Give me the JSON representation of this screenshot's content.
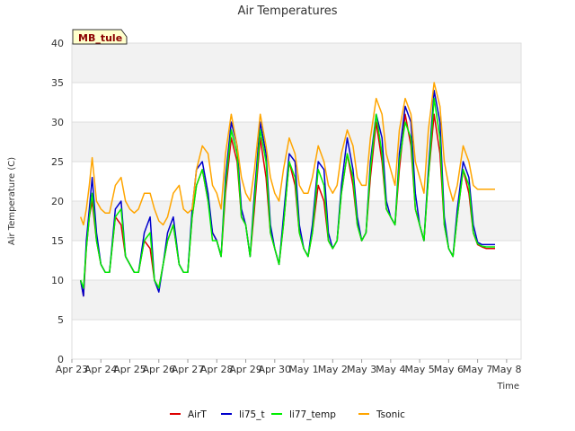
{
  "chart_data": {
    "type": "line",
    "title": "Air Temperatures",
    "xlabel": "Time",
    "ylabel": "Air Temperature (C)",
    "badge": "MB_tule",
    "ylim": [
      0,
      40
    ],
    "yticks": [
      0,
      5,
      10,
      15,
      20,
      25,
      30,
      35,
      40
    ],
    "xlim": [
      0,
      15.5
    ],
    "xticks": [
      {
        "x": 0,
        "label": "Apr 23"
      },
      {
        "x": 1,
        "label": "Apr 24"
      },
      {
        "x": 2,
        "label": "Apr 25"
      },
      {
        "x": 3,
        "label": "Apr 26"
      },
      {
        "x": 4,
        "label": "Apr 27"
      },
      {
        "x": 5,
        "label": "Apr 28"
      },
      {
        "x": 6,
        "label": "Apr 29"
      },
      {
        "x": 7,
        "label": "Apr 30"
      },
      {
        "x": 8,
        "label": "May 1"
      },
      {
        "x": 9,
        "label": "May 2"
      },
      {
        "x": 10,
        "label": "May 3"
      },
      {
        "x": 11,
        "label": "May 4"
      },
      {
        "x": 12,
        "label": "May 5"
      },
      {
        "x": 13,
        "label": "May 6"
      },
      {
        "x": 14,
        "label": "May 7"
      },
      {
        "x": 15,
        "label": "May 8"
      }
    ],
    "grid": true,
    "legend_position": "bottom",
    "series": [
      {
        "name": "AirT",
        "color": "#dd0000",
        "x": [
          0.3,
          0.4,
          0.5,
          0.6,
          0.7,
          0.85,
          1.0,
          1.15,
          1.3,
          1.5,
          1.7,
          1.85,
          2.0,
          2.15,
          2.3,
          2.5,
          2.7,
          2.85,
          3.0,
          3.15,
          3.3,
          3.5,
          3.7,
          3.85,
          4.0,
          4.15,
          4.3,
          4.5,
          4.7,
          4.85,
          5.0,
          5.15,
          5.3,
          5.5,
          5.7,
          5.85,
          6.0,
          6.15,
          6.3,
          6.5,
          6.7,
          6.85,
          7.0,
          7.15,
          7.3,
          7.5,
          7.7,
          7.85,
          8.0,
          8.15,
          8.3,
          8.5,
          8.7,
          8.85,
          9.0,
          9.15,
          9.3,
          9.5,
          9.7,
          9.85,
          10.0,
          10.15,
          10.3,
          10.5,
          10.7,
          10.85,
          11.0,
          11.15,
          11.3,
          11.5,
          11.7,
          11.85,
          12.0,
          12.15,
          12.3,
          12.5,
          12.7,
          12.85,
          13.0,
          13.15,
          13.3,
          13.5,
          13.7,
          13.85,
          14.0,
          14.15,
          14.3,
          14.5,
          14.6
        ],
        "y": [
          10,
          8,
          14,
          18,
          20,
          15,
          12,
          11,
          11,
          18,
          17,
          13,
          12,
          11,
          11,
          15,
          14,
          10,
          9,
          12,
          15,
          17,
          12,
          11,
          11,
          18,
          22,
          24,
          20,
          16,
          15,
          13,
          21,
          28,
          25,
          18,
          17,
          13,
          19,
          28,
          23,
          16,
          14,
          12,
          17,
          25,
          22,
          16,
          14,
          13,
          16,
          22,
          20,
          15,
          14,
          15,
          21,
          26,
          22,
          17,
          15,
          16,
          23,
          30,
          25,
          19,
          18,
          17,
          24,
          31,
          27,
          19,
          17,
          15,
          23,
          31,
          26,
          17,
          14,
          13,
          18,
          24,
          21,
          16,
          14.5,
          14.2,
          14,
          14,
          14
        ]
      },
      {
        "name": "li75_t",
        "color": "#0000cc",
        "x": [
          0.3,
          0.4,
          0.5,
          0.6,
          0.7,
          0.85,
          1.0,
          1.15,
          1.3,
          1.5,
          1.7,
          1.85,
          2.0,
          2.15,
          2.3,
          2.5,
          2.7,
          2.85,
          3.0,
          3.15,
          3.3,
          3.5,
          3.7,
          3.85,
          4.0,
          4.15,
          4.3,
          4.5,
          4.7,
          4.85,
          5.0,
          5.15,
          5.3,
          5.5,
          5.7,
          5.85,
          6.0,
          6.15,
          6.3,
          6.5,
          6.7,
          6.85,
          7.0,
          7.15,
          7.3,
          7.5,
          7.7,
          7.85,
          8.0,
          8.15,
          8.3,
          8.5,
          8.7,
          8.85,
          9.0,
          9.15,
          9.3,
          9.5,
          9.7,
          9.85,
          10.0,
          10.15,
          10.3,
          10.5,
          10.7,
          10.85,
          11.0,
          11.15,
          11.3,
          11.5,
          11.7,
          11.85,
          12.0,
          12.15,
          12.3,
          12.5,
          12.7,
          12.85,
          13.0,
          13.15,
          13.3,
          13.5,
          13.7,
          13.85,
          14.0,
          14.15,
          14.3,
          14.5,
          14.6
        ],
        "y": [
          10,
          8,
          15,
          19,
          23,
          16,
          12,
          11,
          11,
          19,
          20,
          13,
          12,
          11,
          11,
          16,
          18,
          10,
          8.5,
          12,
          16,
          18,
          12,
          11,
          11,
          19,
          24,
          25,
          21,
          16,
          15,
          13,
          23,
          30,
          27,
          19,
          17,
          13,
          21,
          30,
          26,
          17,
          14,
          12,
          18,
          26,
          25,
          17,
          14,
          13,
          17,
          25,
          24,
          16,
          14,
          15,
          22,
          28,
          24,
          18,
          15,
          16,
          25,
          31,
          28,
          20,
          18,
          17,
          26,
          32,
          30,
          21,
          17,
          15,
          24,
          34,
          30,
          18,
          14,
          13,
          19,
          25,
          23,
          17,
          14.8,
          14.5,
          14.5,
          14.5,
          14.5
        ]
      },
      {
        "name": "li77_temp",
        "color": "#00ee00",
        "x": [
          0.3,
          0.4,
          0.5,
          0.6,
          0.7,
          0.85,
          1.0,
          1.15,
          1.3,
          1.5,
          1.7,
          1.85,
          2.0,
          2.15,
          2.3,
          2.5,
          2.7,
          2.85,
          3.0,
          3.15,
          3.3,
          3.5,
          3.7,
          3.85,
          4.0,
          4.15,
          4.3,
          4.5,
          4.7,
          4.85,
          5.0,
          5.15,
          5.3,
          5.5,
          5.7,
          5.85,
          6.0,
          6.15,
          6.3,
          6.5,
          6.7,
          6.85,
          7.0,
          7.15,
          7.3,
          7.5,
          7.7,
          7.85,
          8.0,
          8.15,
          8.3,
          8.5,
          8.7,
          8.85,
          9.0,
          9.15,
          9.3,
          9.5,
          9.7,
          9.85,
          10.0,
          10.15,
          10.3,
          10.5,
          10.7,
          10.85,
          11.0,
          11.15,
          11.3,
          11.5,
          11.7,
          11.85,
          12.0,
          12.15,
          12.3,
          12.5,
          12.7,
          12.85,
          13.0,
          13.15,
          13.3,
          13.5,
          13.7,
          13.85,
          14.0,
          14.15,
          14.3,
          14.5,
          14.6
        ],
        "y": [
          10,
          9,
          14,
          18,
          21,
          15,
          12,
          11,
          11,
          18,
          19,
          13,
          12,
          11,
          11,
          15,
          16,
          10,
          9,
          12,
          15,
          17,
          12,
          11,
          11,
          18,
          22,
          24,
          20,
          15,
          15,
          13,
          22,
          29,
          26,
          18,
          17,
          13,
          20,
          29,
          25,
          16,
          14,
          12,
          17,
          25,
          23,
          16,
          14,
          13,
          16,
          24,
          22,
          15,
          14,
          15,
          21,
          26,
          23,
          17,
          15,
          16,
          24,
          31,
          26,
          19,
          18,
          17,
          25,
          30,
          28,
          19,
          17,
          15,
          23,
          33,
          28,
          17,
          14,
          13,
          18,
          24,
          22,
          16,
          14.6,
          14.3,
          14.2,
          14.2,
          14.2
        ]
      },
      {
        "name": "Tsonic",
        "color": "#ffa500",
        "x": [
          0.3,
          0.4,
          0.5,
          0.6,
          0.7,
          0.85,
          1.0,
          1.15,
          1.3,
          1.5,
          1.7,
          1.85,
          2.0,
          2.15,
          2.3,
          2.5,
          2.7,
          2.85,
          3.0,
          3.15,
          3.3,
          3.5,
          3.7,
          3.85,
          4.0,
          4.15,
          4.3,
          4.5,
          4.7,
          4.85,
          5.0,
          5.15,
          5.3,
          5.5,
          5.7,
          5.85,
          6.0,
          6.15,
          6.3,
          6.5,
          6.7,
          6.85,
          7.0,
          7.15,
          7.3,
          7.5,
          7.7,
          7.85,
          8.0,
          8.15,
          8.3,
          8.5,
          8.7,
          8.85,
          9.0,
          9.15,
          9.3,
          9.5,
          9.7,
          9.85,
          10.0,
          10.15,
          10.3,
          10.5,
          10.7,
          10.85,
          11.0,
          11.15,
          11.3,
          11.5,
          11.7,
          11.85,
          12.0,
          12.15,
          12.3,
          12.5,
          12.7,
          12.85,
          13.0,
          13.15,
          13.3,
          13.5,
          13.7,
          13.85,
          14.0,
          14.15,
          14.3,
          14.5,
          14.6
        ],
        "y": [
          18,
          17,
          19,
          22,
          25.5,
          20,
          19,
          18.5,
          18.5,
          22,
          23,
          20,
          19,
          18.5,
          19,
          21,
          21,
          19,
          17.5,
          17,
          18,
          21,
          22,
          19,
          18.5,
          19,
          24,
          27,
          26,
          22,
          21,
          19,
          26,
          31,
          27,
          23,
          21,
          20,
          24,
          31,
          27,
          23,
          21,
          20,
          24,
          28,
          26,
          22,
          21,
          21,
          23,
          27,
          25,
          22,
          21,
          22,
          26,
          29,
          27,
          23,
          22,
          22,
          28,
          33,
          31,
          26,
          24,
          22,
          29,
          33,
          31,
          25,
          23,
          21,
          29,
          35,
          32,
          25,
          22,
          20,
          22,
          27,
          25,
          22,
          21.5,
          21.5,
          21.5,
          21.5,
          21.5
        ]
      }
    ]
  }
}
